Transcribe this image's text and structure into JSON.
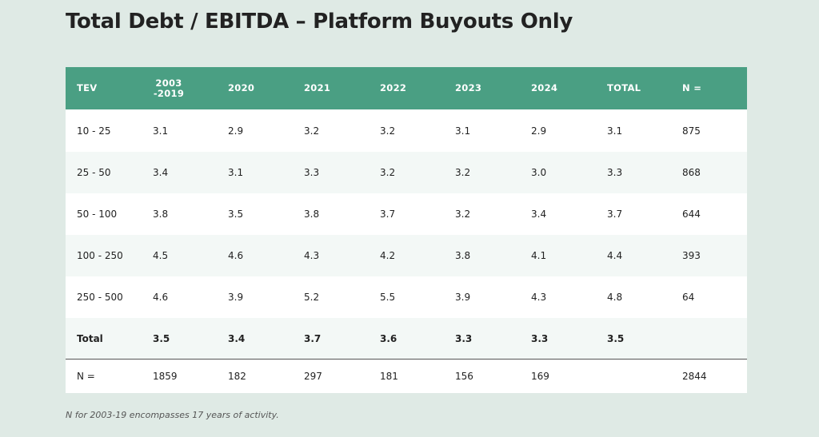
{
  "title": "Total Debt / EBITDA – Platform Buyouts Only",
  "columns": [
    "TEV",
    "2003\n-2019",
    "2020",
    "2021",
    "2022",
    "2023",
    "2024",
    "TOTAL",
    "N ="
  ],
  "column_2003_line1": "2003",
  "column_2003_line2": "-2019",
  "rows": [
    [
      "10 - 25",
      "3.1",
      "2.9",
      "3.2",
      "3.2",
      "3.1",
      "2.9",
      "3.1",
      "875"
    ],
    [
      "25 - 50",
      "3.4",
      "3.1",
      "3.3",
      "3.2",
      "3.2",
      "3.0",
      "3.3",
      "868"
    ],
    [
      "50 - 100",
      "3.8",
      "3.5",
      "3.8",
      "3.7",
      "3.2",
      "3.4",
      "3.7",
      "644"
    ],
    [
      "100 - 250",
      "4.5",
      "4.6",
      "4.3",
      "4.2",
      "3.8",
      "4.1",
      "4.4",
      "393"
    ],
    [
      "250 - 500",
      "4.6",
      "3.9",
      "5.2",
      "5.5",
      "3.9",
      "4.3",
      "4.8",
      "64"
    ]
  ],
  "total_row": [
    "Total",
    "3.5",
    "3.4",
    "3.7",
    "3.6",
    "3.3",
    "3.3",
    "3.5",
    ""
  ],
  "n_row": [
    "N =",
    "1859",
    "182",
    "297",
    "181",
    "156",
    "169",
    "",
    "2844"
  ],
  "footnote": "N for 2003-19 encompasses 17 years of activity.",
  "colors": {
    "background": "#dfeae5",
    "header": "#4a9f83",
    "row_white": "#ffffff",
    "row_tint": "#f3f8f6"
  }
}
